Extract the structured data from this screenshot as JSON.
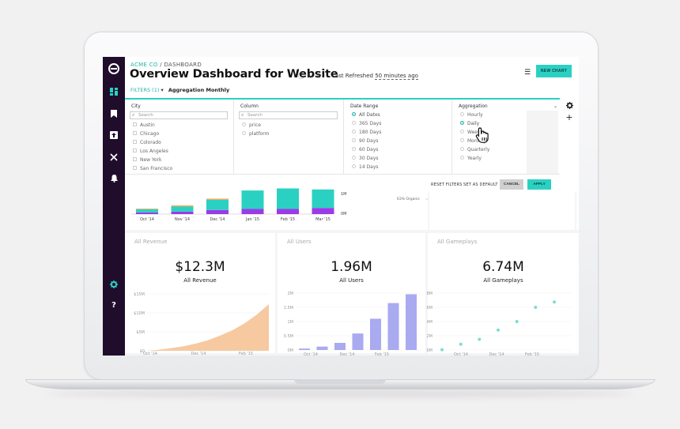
{
  "header": {
    "breadcrumb_org": "ACME CO",
    "breadcrumb_sep": " / ",
    "breadcrumb_page": "DASHBOARD",
    "title": "Overview Dashboard for Website",
    "refresh_prefix": "Last Refreshed ",
    "refresh_ago": "50 minutes ago",
    "new_chart_label": "NEW CHART",
    "filters_label": "FILTERS (1)",
    "filters_caret": "▾",
    "aggregation_summary": "Aggregation Monthly"
  },
  "filter_panel": {
    "city": {
      "header": "City",
      "search_placeholder": "Search",
      "options": [
        "Austin",
        "Chicago",
        "Colorado",
        "Los Angeles",
        "New York",
        "San Francisco"
      ]
    },
    "column": {
      "header": "Column",
      "search_placeholder": "Search",
      "options": [
        "price",
        "platform"
      ]
    },
    "date_range": {
      "header": "Date Range",
      "options": [
        "All Dates",
        "365 Days",
        "180 Days",
        "90 Days",
        "60 Days",
        "30 Days",
        "14 Days"
      ],
      "selected": "All Dates"
    },
    "aggregation": {
      "header": "Aggregation",
      "options": [
        "Hourly",
        "Daily",
        "Weekly",
        "Monthly",
        "Quarterly",
        "Yearly"
      ],
      "selected": "Daily"
    },
    "footer": {
      "reset_label": "RESET FILTERS",
      "default_label": "SET AS DEFAULT",
      "cancel_label": "CANCEL",
      "apply_label": "APPLY"
    }
  },
  "icons": {
    "sidebar": [
      "logo-icon",
      "dashboard-icon",
      "bookmark-icon",
      "upload-icon",
      "tools-icon",
      "bell-icon",
      "gear-icon",
      "help-icon"
    ],
    "header": [
      "info-icon",
      "refresh-icon",
      "star-icon",
      "menu-icon"
    ],
    "rail": [
      "gear-icon",
      "plus-icon"
    ]
  },
  "colors": {
    "accent": "#2ad1c3",
    "sidebar": "#200d2c",
    "purple": "#9b3be8",
    "orange": "#f0a04b",
    "revenue_fill": "#f7c9a0",
    "users_bar": "#a9aaf0",
    "gameplays_dot": "#7fdcd2"
  },
  "chart_data": [
    {
      "type": "bar",
      "categories": [
        "Oct '14",
        "Nov '14",
        "Dec '14",
        "Jan '15",
        "Feb '15",
        "Mar '15"
      ],
      "series": [
        {
          "values": [
            0.08,
            0.12,
            0.2,
            0.25,
            0.25,
            0.3
          ]
        },
        {
          "values": [
            0.15,
            0.25,
            0.5,
            0.9,
            1.0,
            0.9
          ]
        },
        {
          "values": [
            0.03,
            0.05,
            0.05,
            0.0,
            0.0,
            0.0
          ]
        }
      ],
      "yticks": [
        "1M",
        "0M"
      ],
      "annotation": "63% Organic"
    },
    {
      "type": "area",
      "title": "All Revenue",
      "kpi_value": "$12.3M",
      "kpi_label": "All Revenue",
      "yticks": [
        "$15M",
        "$10M",
        "$5M",
        "$0"
      ],
      "ylim": [
        0,
        15
      ],
      "xticks": [
        "Oct '14",
        "Dec '14",
        "Feb '15"
      ],
      "x": [
        0,
        1,
        2,
        3,
        4,
        5,
        6,
        7,
        8,
        9,
        10
      ],
      "values": [
        0,
        0.3,
        0.7,
        1.2,
        1.9,
        2.8,
        4.0,
        5.4,
        7.2,
        9.5,
        12.3
      ]
    },
    {
      "type": "bar",
      "title": "All Users",
      "kpi_value": "1.96M",
      "kpi_label": "All Users",
      "yticks": [
        "2M",
        "1.5M",
        "1M",
        "0.5M",
        "0M"
      ],
      "ylim": [
        0,
        2
      ],
      "xticks": [
        "Oct '14",
        "Dec '14",
        "Feb '15"
      ],
      "values": [
        0.05,
        0.12,
        0.25,
        0.58,
        1.1,
        1.65,
        1.96
      ]
    },
    {
      "type": "scatter",
      "title": "All Gameplays",
      "kpi_value": "6.74M",
      "kpi_label": "All Gameplays",
      "yticks": [
        "8M",
        "6M",
        "4M",
        "2M",
        "0M"
      ],
      "ylim": [
        0,
        8
      ],
      "xticks": [
        "Oct '14",
        "Dec '14",
        "Feb '15"
      ],
      "x": [
        0,
        1,
        2,
        3,
        4,
        5,
        6
      ],
      "values": [
        0.05,
        0.8,
        1.5,
        2.8,
        4.0,
        6.0,
        6.74
      ]
    }
  ]
}
